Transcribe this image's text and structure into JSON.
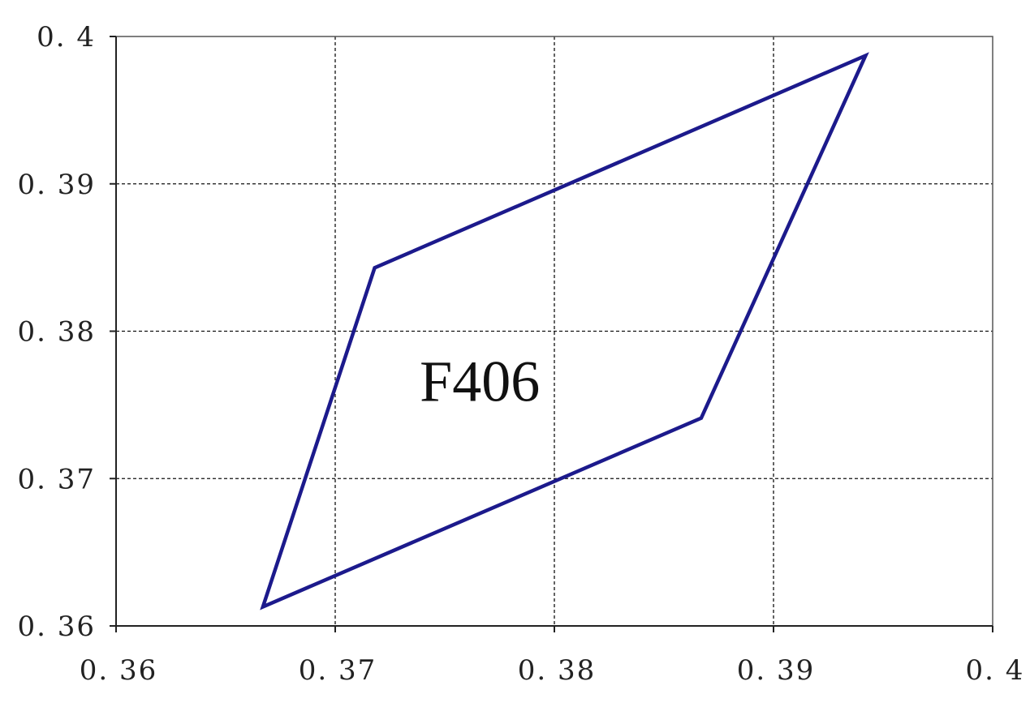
{
  "chart_data": {
    "type": "line",
    "title": "",
    "xlabel": "",
    "ylabel": "",
    "xlim": [
      0.36,
      0.4
    ],
    "ylim": [
      0.36,
      0.4
    ],
    "x_ticks": [
      0.36,
      0.37,
      0.38,
      0.39,
      0.4
    ],
    "y_ticks": [
      0.36,
      0.37,
      0.38,
      0.39,
      0.4
    ],
    "x_tick_labels": [
      "0. 36",
      "0. 37",
      "0. 38",
      "0. 39",
      "0. 4"
    ],
    "y_tick_labels": [
      "0. 36",
      "0. 37",
      "0. 38",
      "0. 39",
      "0. 4"
    ],
    "grid": true,
    "legend": "none",
    "series": [
      {
        "color": "#1c1a8c",
        "closed": true,
        "x": [
          0.3667,
          0.3718,
          0.3942,
          0.3867,
          0.3667
        ],
        "y": [
          0.3613,
          0.3843,
          0.3987,
          0.3741,
          0.3613
        ]
      }
    ],
    "annotations": [
      {
        "text": "F406",
        "x": 0.3766,
        "y": 0.3766
      }
    ]
  }
}
